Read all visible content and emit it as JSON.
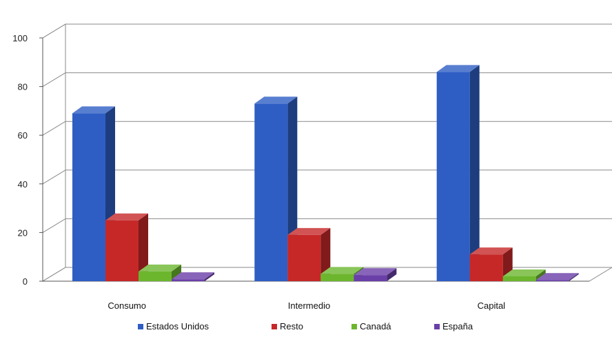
{
  "chart_data": {
    "type": "bar",
    "style": "3d-clustered-column",
    "categories": [
      "Consumo",
      "Intermedio",
      "Capital"
    ],
    "series": [
      {
        "name": "Estados Unidos",
        "values": [
          69,
          73,
          86
        ],
        "color": "#2E5EC4"
      },
      {
        "name": "Resto",
        "values": [
          25,
          19,
          11
        ],
        "color": "#C62828"
      },
      {
        "name": "Canadá",
        "values": [
          4,
          3,
          2
        ],
        "color": "#6CB62E"
      },
      {
        "name": "España",
        "values": [
          0.8,
          2.5,
          0.5
        ],
        "color": "#6A3FA8"
      }
    ],
    "yticks": [
      0,
      20,
      40,
      60,
      80,
      100
    ],
    "ylim": [
      0,
      100
    ],
    "grid": true,
    "legend": "bottom"
  }
}
